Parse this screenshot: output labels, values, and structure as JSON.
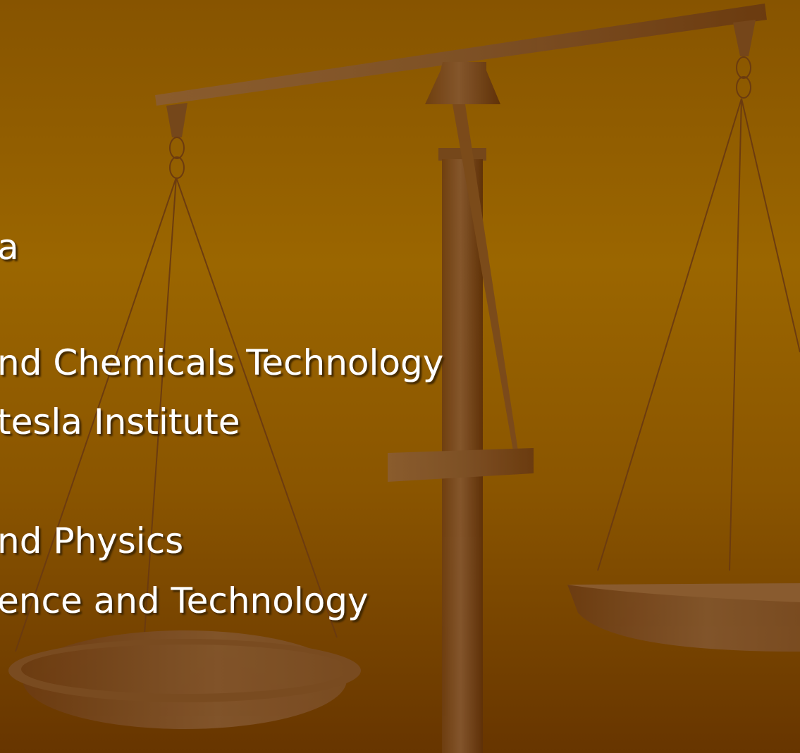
{
  "lines": [
    "a",
    "nd Chemicals Technology",
    "tesla Institute",
    "nd Physics",
    "ence and Technology"
  ]
}
